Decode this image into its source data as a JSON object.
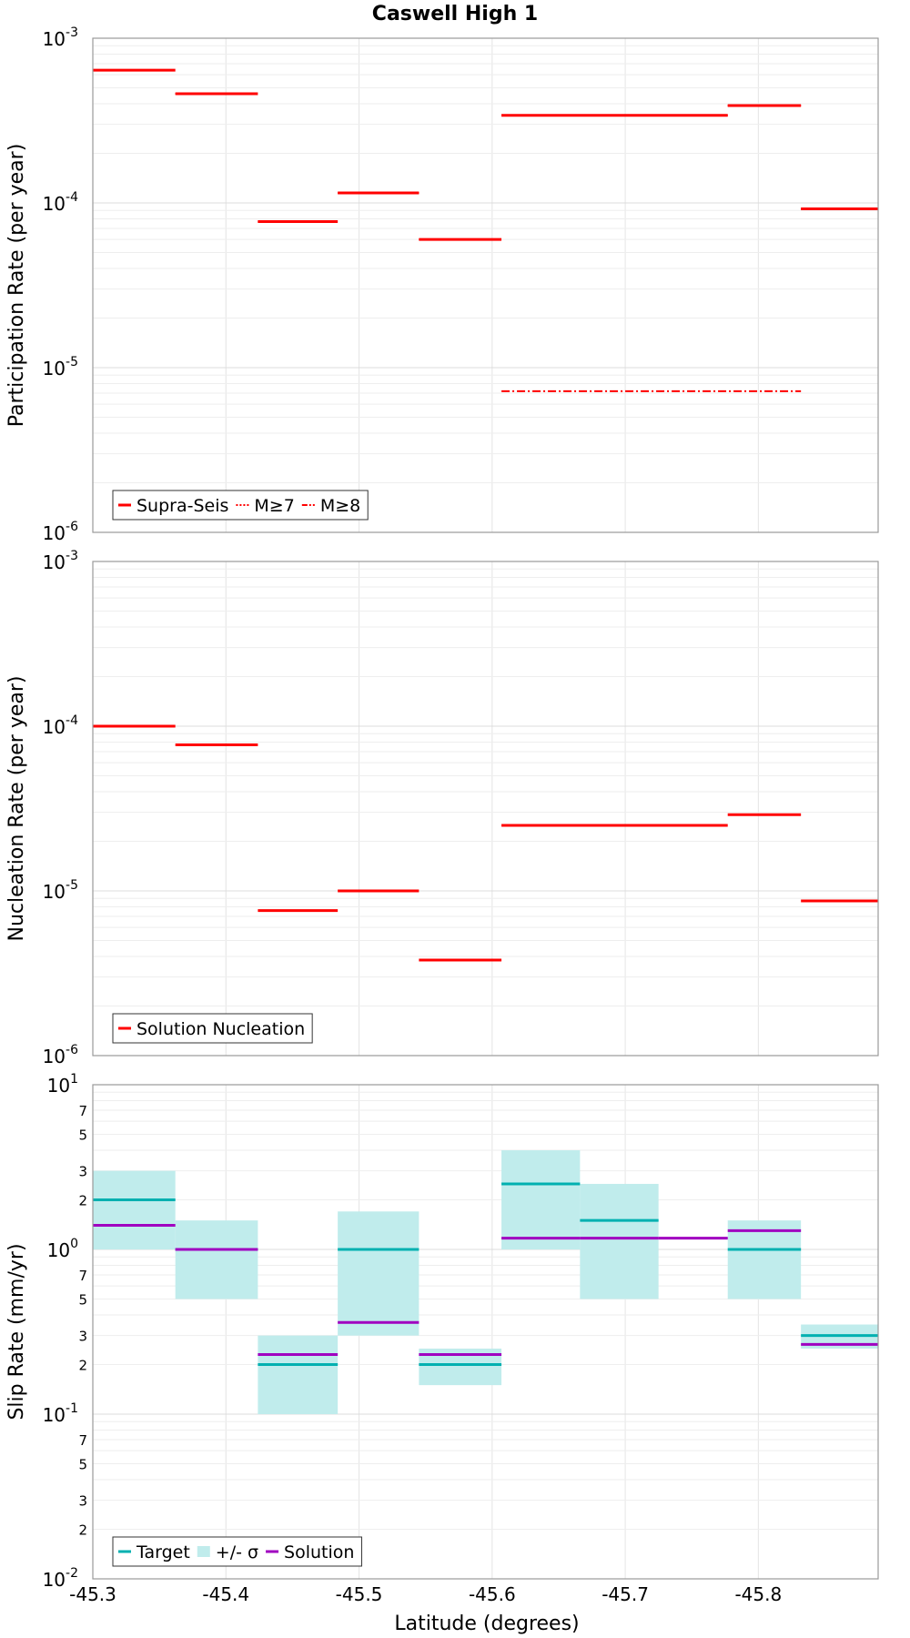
{
  "chart_data": {
    "title": "Caswell High 1",
    "xlabel": "Latitude (degrees)",
    "xlim": [
      -45.3,
      -45.89
    ],
    "x_ticks": [
      "-45.3",
      "-45.4",
      "-45.5",
      "-45.6",
      "-45.7",
      "-45.8"
    ],
    "x_tick_values": [
      -45.3,
      -45.4,
      -45.5,
      -45.6,
      -45.7,
      -45.8
    ],
    "panels": [
      {
        "type": "line",
        "id": "participation",
        "ylabel": "Participation Rate (per year)",
        "yscale": "log",
        "ylim_exp": [
          -6,
          -3
        ],
        "y_ticks": [
          {
            "base": "10",
            "exp": "-3",
            "value": 0.001
          },
          {
            "base": "10",
            "exp": "-4",
            "value": 0.0001
          },
          {
            "base": "10",
            "exp": "-5",
            "value": 1e-05
          },
          {
            "base": "10",
            "exp": "-6",
            "value": 1e-06
          }
        ],
        "legend": [
          "Supra-Seis",
          "M≥7",
          "M≥8"
        ],
        "colors": {
          "series": "#ff0000"
        },
        "series": [
          {
            "name": "Supra-Seis",
            "style": "solid",
            "segments": [
              {
                "x0": -45.3,
                "x1": -45.362,
                "y": 0.00064
              },
              {
                "x0": -45.362,
                "x1": -45.424,
                "y": 0.00046
              },
              {
                "x0": -45.424,
                "x1": -45.484,
                "y": 7.7e-05
              },
              {
                "x0": -45.484,
                "x1": -45.545,
                "y": 0.000115
              },
              {
                "x0": -45.545,
                "x1": -45.607,
                "y": 6e-05
              },
              {
                "x0": -45.607,
                "x1": -45.777,
                "y": 0.00034
              },
              {
                "x0": -45.777,
                "x1": -45.832,
                "y": 0.00039
              },
              {
                "x0": -45.832,
                "x1": -45.89,
                "y": 9.2e-05
              }
            ]
          },
          {
            "name": "M≥7",
            "style": "dotted",
            "segments": [
              {
                "x0": -45.3,
                "x1": -45.362,
                "y": 0.00064
              },
              {
                "x0": -45.362,
                "x1": -45.424,
                "y": 0.00046
              },
              {
                "x0": -45.424,
                "x1": -45.484,
                "y": 7.7e-05
              },
              {
                "x0": -45.484,
                "x1": -45.545,
                "y": 0.000115
              },
              {
                "x0": -45.545,
                "x1": -45.607,
                "y": 6e-05
              },
              {
                "x0": -45.607,
                "x1": -45.777,
                "y": 0.00034
              },
              {
                "x0": -45.777,
                "x1": -45.832,
                "y": 0.00039
              },
              {
                "x0": -45.832,
                "x1": -45.89,
                "y": 9.2e-05
              }
            ]
          },
          {
            "name": "M≥8",
            "style": "dashdot",
            "segments": [
              {
                "x0": -45.607,
                "x1": -45.832,
                "y": 7.2e-06
              }
            ]
          }
        ]
      },
      {
        "type": "line",
        "id": "nucleation",
        "ylabel": "Nucleation Rate (per year)",
        "yscale": "log",
        "ylim_exp": [
          -6,
          -3
        ],
        "y_ticks": [
          {
            "base": "10",
            "exp": "-3",
            "value": 0.001
          },
          {
            "base": "10",
            "exp": "-4",
            "value": 0.0001
          },
          {
            "base": "10",
            "exp": "-5",
            "value": 1e-05
          },
          {
            "base": "10",
            "exp": "-6",
            "value": 1e-06
          }
        ],
        "legend": [
          "Solution Nucleation"
        ],
        "colors": {
          "series": "#ff0000"
        },
        "series": [
          {
            "name": "Solution Nucleation",
            "style": "solid",
            "segments": [
              {
                "x0": -45.3,
                "x1": -45.362,
                "y": 0.0001
              },
              {
                "x0": -45.362,
                "x1": -45.424,
                "y": 7.7e-05
              },
              {
                "x0": -45.424,
                "x1": -45.484,
                "y": 7.6e-06
              },
              {
                "x0": -45.484,
                "x1": -45.545,
                "y": 1e-05
              },
              {
                "x0": -45.545,
                "x1": -45.607,
                "y": 3.8e-06
              },
              {
                "x0": -45.607,
                "x1": -45.777,
                "y": 2.5e-05
              },
              {
                "x0": -45.777,
                "x1": -45.832,
                "y": 2.9e-05
              },
              {
                "x0": -45.832,
                "x1": -45.89,
                "y": 8.7e-06
              }
            ]
          }
        ]
      },
      {
        "type": "line",
        "id": "slip",
        "ylabel": "Slip Rate (mm/yr)",
        "yscale": "log",
        "ylim_exp": [
          -2,
          1
        ],
        "y_ticks": [
          {
            "base": "10",
            "exp": "1",
            "value": 10
          },
          {
            "base": "10",
            "exp": "0",
            "value": 1
          },
          {
            "base": "10",
            "exp": "-1",
            "value": 0.1
          },
          {
            "base": "10",
            "exp": "-2",
            "value": 0.01
          }
        ],
        "y_minor_labels": [
          {
            "label": "7",
            "value": 7
          },
          {
            "label": "5",
            "value": 5
          },
          {
            "label": "3",
            "value": 3
          },
          {
            "label": "2",
            "value": 2
          },
          {
            "label": "7",
            "value": 0.7
          },
          {
            "label": "5",
            "value": 0.5
          },
          {
            "label": "3",
            "value": 0.3
          },
          {
            "label": "2",
            "value": 0.2
          },
          {
            "label": "7",
            "value": 0.07
          },
          {
            "label": "5",
            "value": 0.05
          },
          {
            "label": "3",
            "value": 0.03
          },
          {
            "label": "2",
            "value": 0.02
          }
        ],
        "legend": [
          "Target",
          "+/- σ",
          "Solution"
        ],
        "colors": {
          "target": "#00b0b0",
          "sigma": "#c0ecec",
          "solution": "#a000c0"
        },
        "sections": [
          {
            "x0": -45.3,
            "x1": -45.362,
            "target": 2.0,
            "lo": 1.0,
            "hi": 3.0,
            "solution": 1.4
          },
          {
            "x0": -45.362,
            "x1": -45.424,
            "target": 1.0,
            "lo": 0.5,
            "hi": 1.5,
            "solution": 1.0
          },
          {
            "x0": -45.424,
            "x1": -45.484,
            "target": 0.2,
            "lo": 0.1,
            "hi": 0.3,
            "solution": 0.23
          },
          {
            "x0": -45.484,
            "x1": -45.545,
            "target": 1.0,
            "lo": 0.3,
            "hi": 1.7,
            "solution": 0.36
          },
          {
            "x0": -45.545,
            "x1": -45.607,
            "target": 0.2,
            "lo": 0.15,
            "hi": 0.25,
            "solution": 0.23
          },
          {
            "x0": -45.607,
            "x1": -45.666,
            "target": 2.5,
            "lo": 1.0,
            "hi": 4.0,
            "solution": 1.17
          },
          {
            "x0": -45.666,
            "x1": -45.725,
            "target": 1.5,
            "lo": 0.5,
            "hi": 2.5,
            "solution": 1.17
          },
          {
            "x0": -45.725,
            "x1": -45.777,
            "target": null,
            "lo": null,
            "hi": null,
            "solution": 1.17
          },
          {
            "x0": -45.777,
            "x1": -45.832,
            "target": 1.0,
            "lo": 0.5,
            "hi": 1.5,
            "solution": 1.3
          },
          {
            "x0": -45.832,
            "x1": -45.89,
            "target": 0.3,
            "lo": 0.25,
            "hi": 0.35,
            "solution": 0.265
          }
        ]
      }
    ]
  }
}
